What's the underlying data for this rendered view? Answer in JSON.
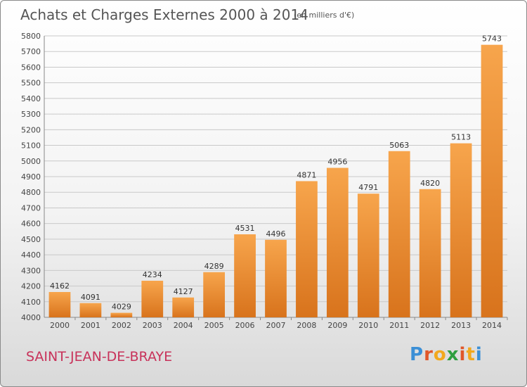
{
  "header": {
    "title": "Achats et Charges Externes 2000 à 2014",
    "subtitle": "(en milliers d'€)"
  },
  "footer": {
    "commune": "SAINT-JEAN-DE-BRAYE",
    "logo": "Proxiti"
  },
  "colors": {
    "bar_top": "#f7a54c",
    "bar_bottom": "#d8731c",
    "commune": "#c8325a",
    "logo_letters": [
      "#3b8fd6",
      "#e0572a",
      "#f2a81d",
      "#2e9e3f",
      "#e0572a",
      "#f2a81d",
      "#3b8fd6"
    ]
  },
  "chart_data": {
    "type": "bar",
    "title": "Achats et Charges Externes 2000 à 2014",
    "subtitle": "(en milliers d'€)",
    "categories": [
      "2000",
      "2001",
      "2002",
      "2003",
      "2004",
      "2005",
      "2006",
      "2007",
      "2008",
      "2009",
      "2010",
      "2011",
      "2012",
      "2013",
      "2014"
    ],
    "values": [
      4162,
      4091,
      4029,
      4234,
      4127,
      4289,
      4531,
      4496,
      4871,
      4956,
      4791,
      5063,
      4820,
      5113,
      5743
    ],
    "ylim": [
      4000,
      5800
    ],
    "yticks": [
      4000,
      4100,
      4200,
      4300,
      4400,
      4500,
      4600,
      4700,
      4800,
      4900,
      5000,
      5100,
      5200,
      5300,
      5400,
      5500,
      5600,
      5700,
      5800
    ],
    "grid": true,
    "legend": "none"
  }
}
